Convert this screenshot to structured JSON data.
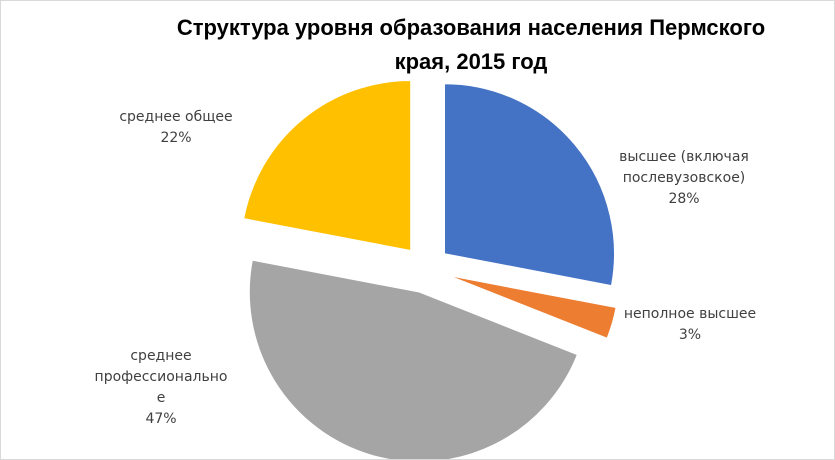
{
  "chart_data": {
    "type": "pie",
    "title": "Структура уровня образования населения  Пермского края, 2015 год",
    "title_lines": [
      "Структура уровня образования населения  Пермского",
      "края, 2015 год"
    ],
    "slices": [
      {
        "label": "высшее (включая послевузовское)",
        "label_lines": [
          "высшее (включая",
          "послевузовское)"
        ],
        "value": 28,
        "value_label": "28%",
        "color": "#4472C4"
      },
      {
        "label": "неполное высшее",
        "label_lines": [
          "неполное высшее"
        ],
        "value": 3,
        "value_label": "3%",
        "color": "#ED7D31"
      },
      {
        "label": "среднее профессиональное",
        "label_lines": [
          "среднее",
          "профессионально",
          "е"
        ],
        "value": 47,
        "value_label": "47%",
        "color": "#A5A5A5"
      },
      {
        "label": "среднее общее",
        "label_lines": [
          "среднее общее"
        ],
        "value": 22,
        "value_label": "22%",
        "color": "#FFC000"
      }
    ],
    "legend": "none"
  }
}
